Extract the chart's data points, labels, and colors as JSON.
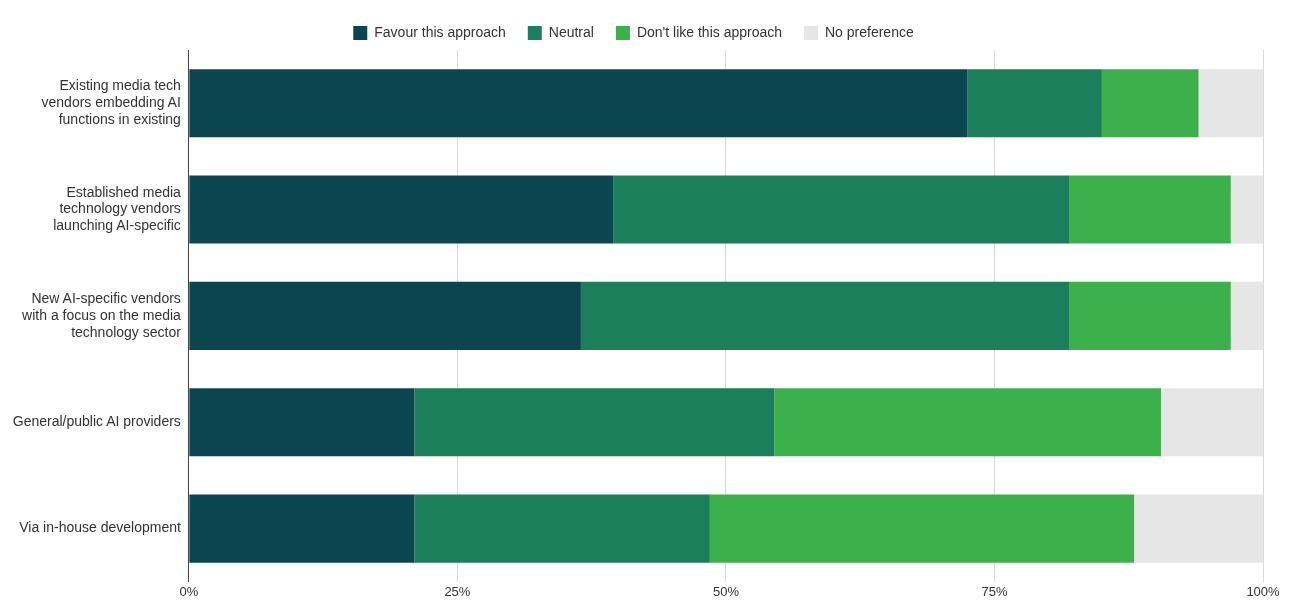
{
  "chart_data": {
    "type": "bar",
    "orientation": "horizontal",
    "stacked": true,
    "categories": [
      "Existing media tech\nvendors embedding AI\nfunctions in existing",
      "Established media\ntechnology vendors\nlaunching AI-specific",
      "New AI-specific vendors\nwith a focus on the media\ntechnology sector",
      "General/public AI providers",
      "Via in-house development"
    ],
    "series": [
      {
        "name": "Favour this approach",
        "color": "#0b4650",
        "values": [
          72.5,
          39.5,
          36.5,
          21,
          21
        ]
      },
      {
        "name": "Neutral",
        "color": "#1a7f5a",
        "values": [
          12.5,
          42.5,
          45.5,
          33.5,
          27.5
        ]
      },
      {
        "name": "Don't like this approach",
        "color": "#3cb04a",
        "values": [
          9,
          15,
          15,
          36,
          39.5
        ]
      },
      {
        "name": "No preference",
        "color": "#e6e6e6",
        "values": [
          6,
          3,
          3,
          9.5,
          12
        ]
      }
    ],
    "xlim": [
      0,
      100
    ],
    "xticks": [
      {
        "value": 0,
        "label": "0%"
      },
      {
        "value": 25,
        "label": "25%"
      },
      {
        "value": 50,
        "label": "50%"
      },
      {
        "value": 75,
        "label": "75%"
      },
      {
        "value": 100,
        "label": "100%"
      }
    ],
    "grid": "x",
    "legend": "top"
  }
}
